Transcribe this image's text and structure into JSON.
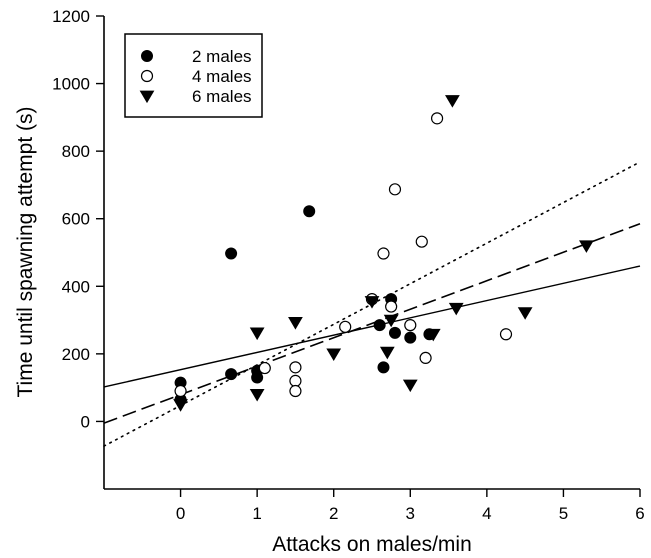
{
  "chart_data": {
    "type": "scatter",
    "xlabel": "Attacks on males/min",
    "ylabel": "Time until spawning attempt (s)",
    "xlim": [
      -1,
      6
    ],
    "ylim": [
      -200,
      1200
    ],
    "xticks": [
      0,
      1,
      2,
      3,
      4,
      5,
      6
    ],
    "yticks": [
      0,
      200,
      400,
      600,
      800,
      1000,
      1200
    ],
    "grid": false,
    "legend_position": "top-left",
    "series": [
      {
        "name": "2 males",
        "marker": "filled-circle",
        "color": "#000000",
        "points": [
          [
            0,
            115
          ],
          [
            0,
            65
          ],
          [
            0.66,
            497
          ],
          [
            0.66,
            140
          ],
          [
            1,
            150
          ],
          [
            1,
            130
          ],
          [
            1.68,
            622
          ],
          [
            2.6,
            285
          ],
          [
            2.65,
            160
          ],
          [
            2.75,
            362
          ],
          [
            2.8,
            262
          ],
          [
            3.0,
            248
          ],
          [
            3.25,
            258
          ]
        ]
      },
      {
        "name": "4 males",
        "marker": "open-circle",
        "color": "#000000",
        "points": [
          [
            0,
            90
          ],
          [
            1.1,
            158
          ],
          [
            1.5,
            160
          ],
          [
            1.5,
            120
          ],
          [
            1.5,
            90
          ],
          [
            2.15,
            280
          ],
          [
            2.5,
            362
          ],
          [
            2.65,
            497
          ],
          [
            2.75,
            340
          ],
          [
            2.8,
            687
          ],
          [
            3.0,
            285
          ],
          [
            3.15,
            532
          ],
          [
            3.2,
            188
          ],
          [
            3.35,
            897
          ],
          [
            4.25,
            258
          ]
        ]
      },
      {
        "name": "6 males",
        "marker": "filled-triangle-down",
        "color": "#000000",
        "points": [
          [
            0,
            50
          ],
          [
            1,
            262
          ],
          [
            1,
            80
          ],
          [
            1.5,
            293
          ],
          [
            2.0,
            200
          ],
          [
            2.5,
            355
          ],
          [
            2.7,
            205
          ],
          [
            2.75,
            300
          ],
          [
            3.0,
            108
          ],
          [
            3.3,
            258
          ],
          [
            3.55,
            950
          ],
          [
            3.6,
            335
          ],
          [
            4.5,
            322
          ],
          [
            5.3,
            520
          ]
        ]
      }
    ],
    "regression_lines": [
      {
        "series": "2 males",
        "style": "solid",
        "endpoints": [
          [
            -1,
            102
          ],
          [
            6,
            460
          ]
        ]
      },
      {
        "series": "4 males",
        "style": "dotted",
        "endpoints": [
          [
            -1,
            -73
          ],
          [
            6,
            768
          ]
        ]
      },
      {
        "series": "6 males",
        "style": "dashed",
        "endpoints": [
          [
            -1,
            -5
          ],
          [
            6,
            585
          ]
        ]
      }
    ]
  }
}
